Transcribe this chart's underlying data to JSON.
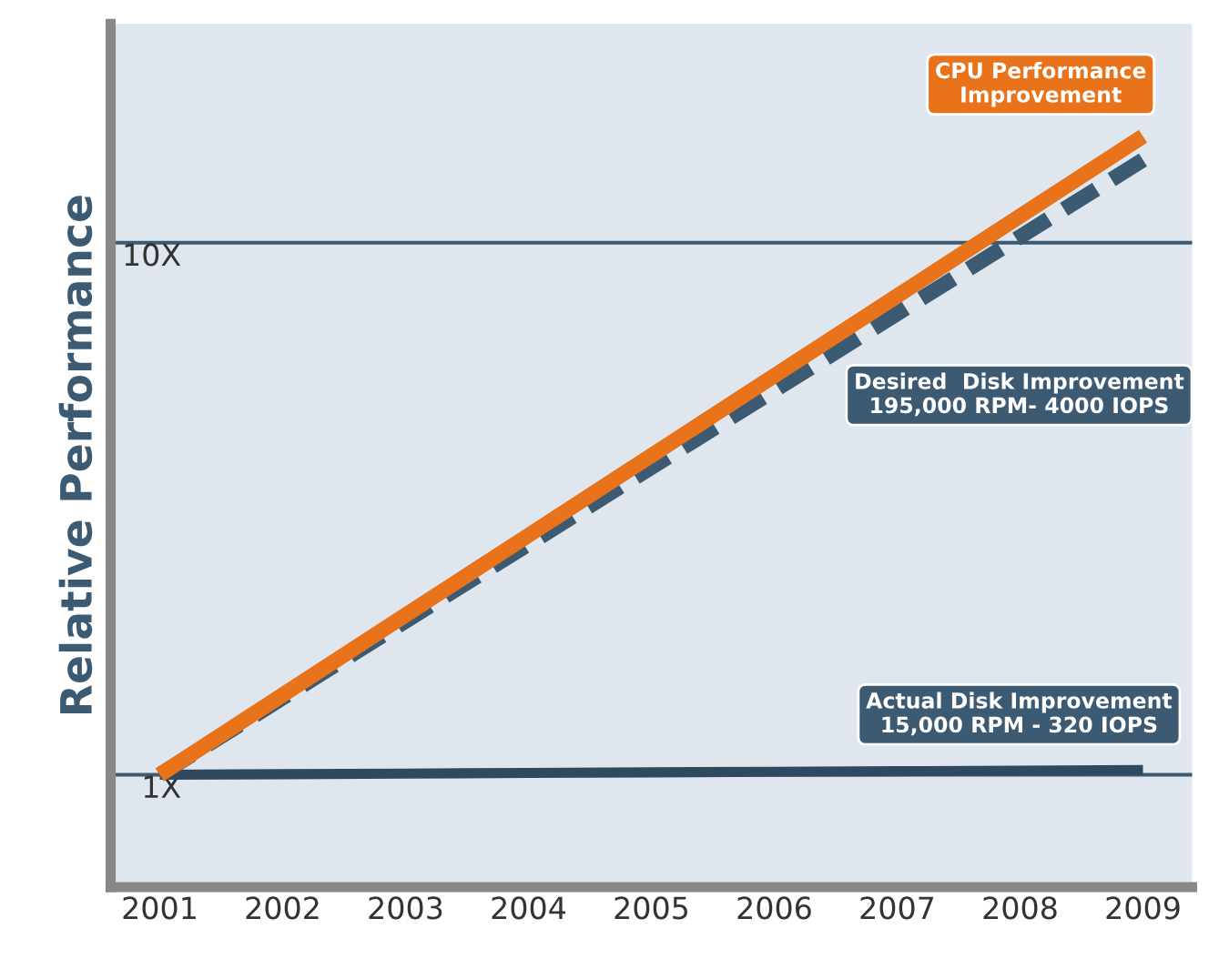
{
  "chart_data": {
    "type": "line",
    "ylabel": "Relative Performance",
    "categories": [
      "2001",
      "2002",
      "2003",
      "2004",
      "2005",
      "2006",
      "2007",
      "2008",
      "2009"
    ],
    "series": [
      {
        "name": "CPU Performance\nImprovement",
        "color": "#e8731a",
        "line_style": "solid",
        "values": [
          1,
          2.35,
          3.7,
          5.05,
          6.4,
          7.75,
          9.1,
          10.45,
          11.8
        ]
      },
      {
        "name": "Desired  Disk Improvement\n195,000 RPM- 4000 IOPS",
        "color": "#3d5a73",
        "line_style": "dashed",
        "values": [
          1,
          2.3,
          3.6,
          4.9,
          6.2,
          7.5,
          8.8,
          10.1,
          11.4
        ]
      },
      {
        "name": "Actual Disk Improvement\n15,000 RPM - 320 IOPS",
        "color": "#2f4a5e",
        "line_style": "solid",
        "values": [
          1,
          1.01,
          1.02,
          1.03,
          1.04,
          1.05,
          1.06,
          1.07,
          1.08
        ]
      }
    ],
    "ylim": [
      -0.9,
      13.7
    ],
    "yticks": [
      {
        "value": 1,
        "label": "1X"
      },
      {
        "value": 10,
        "label": "10X"
      }
    ],
    "grid": "y",
    "marker": "none",
    "legend": false
  }
}
